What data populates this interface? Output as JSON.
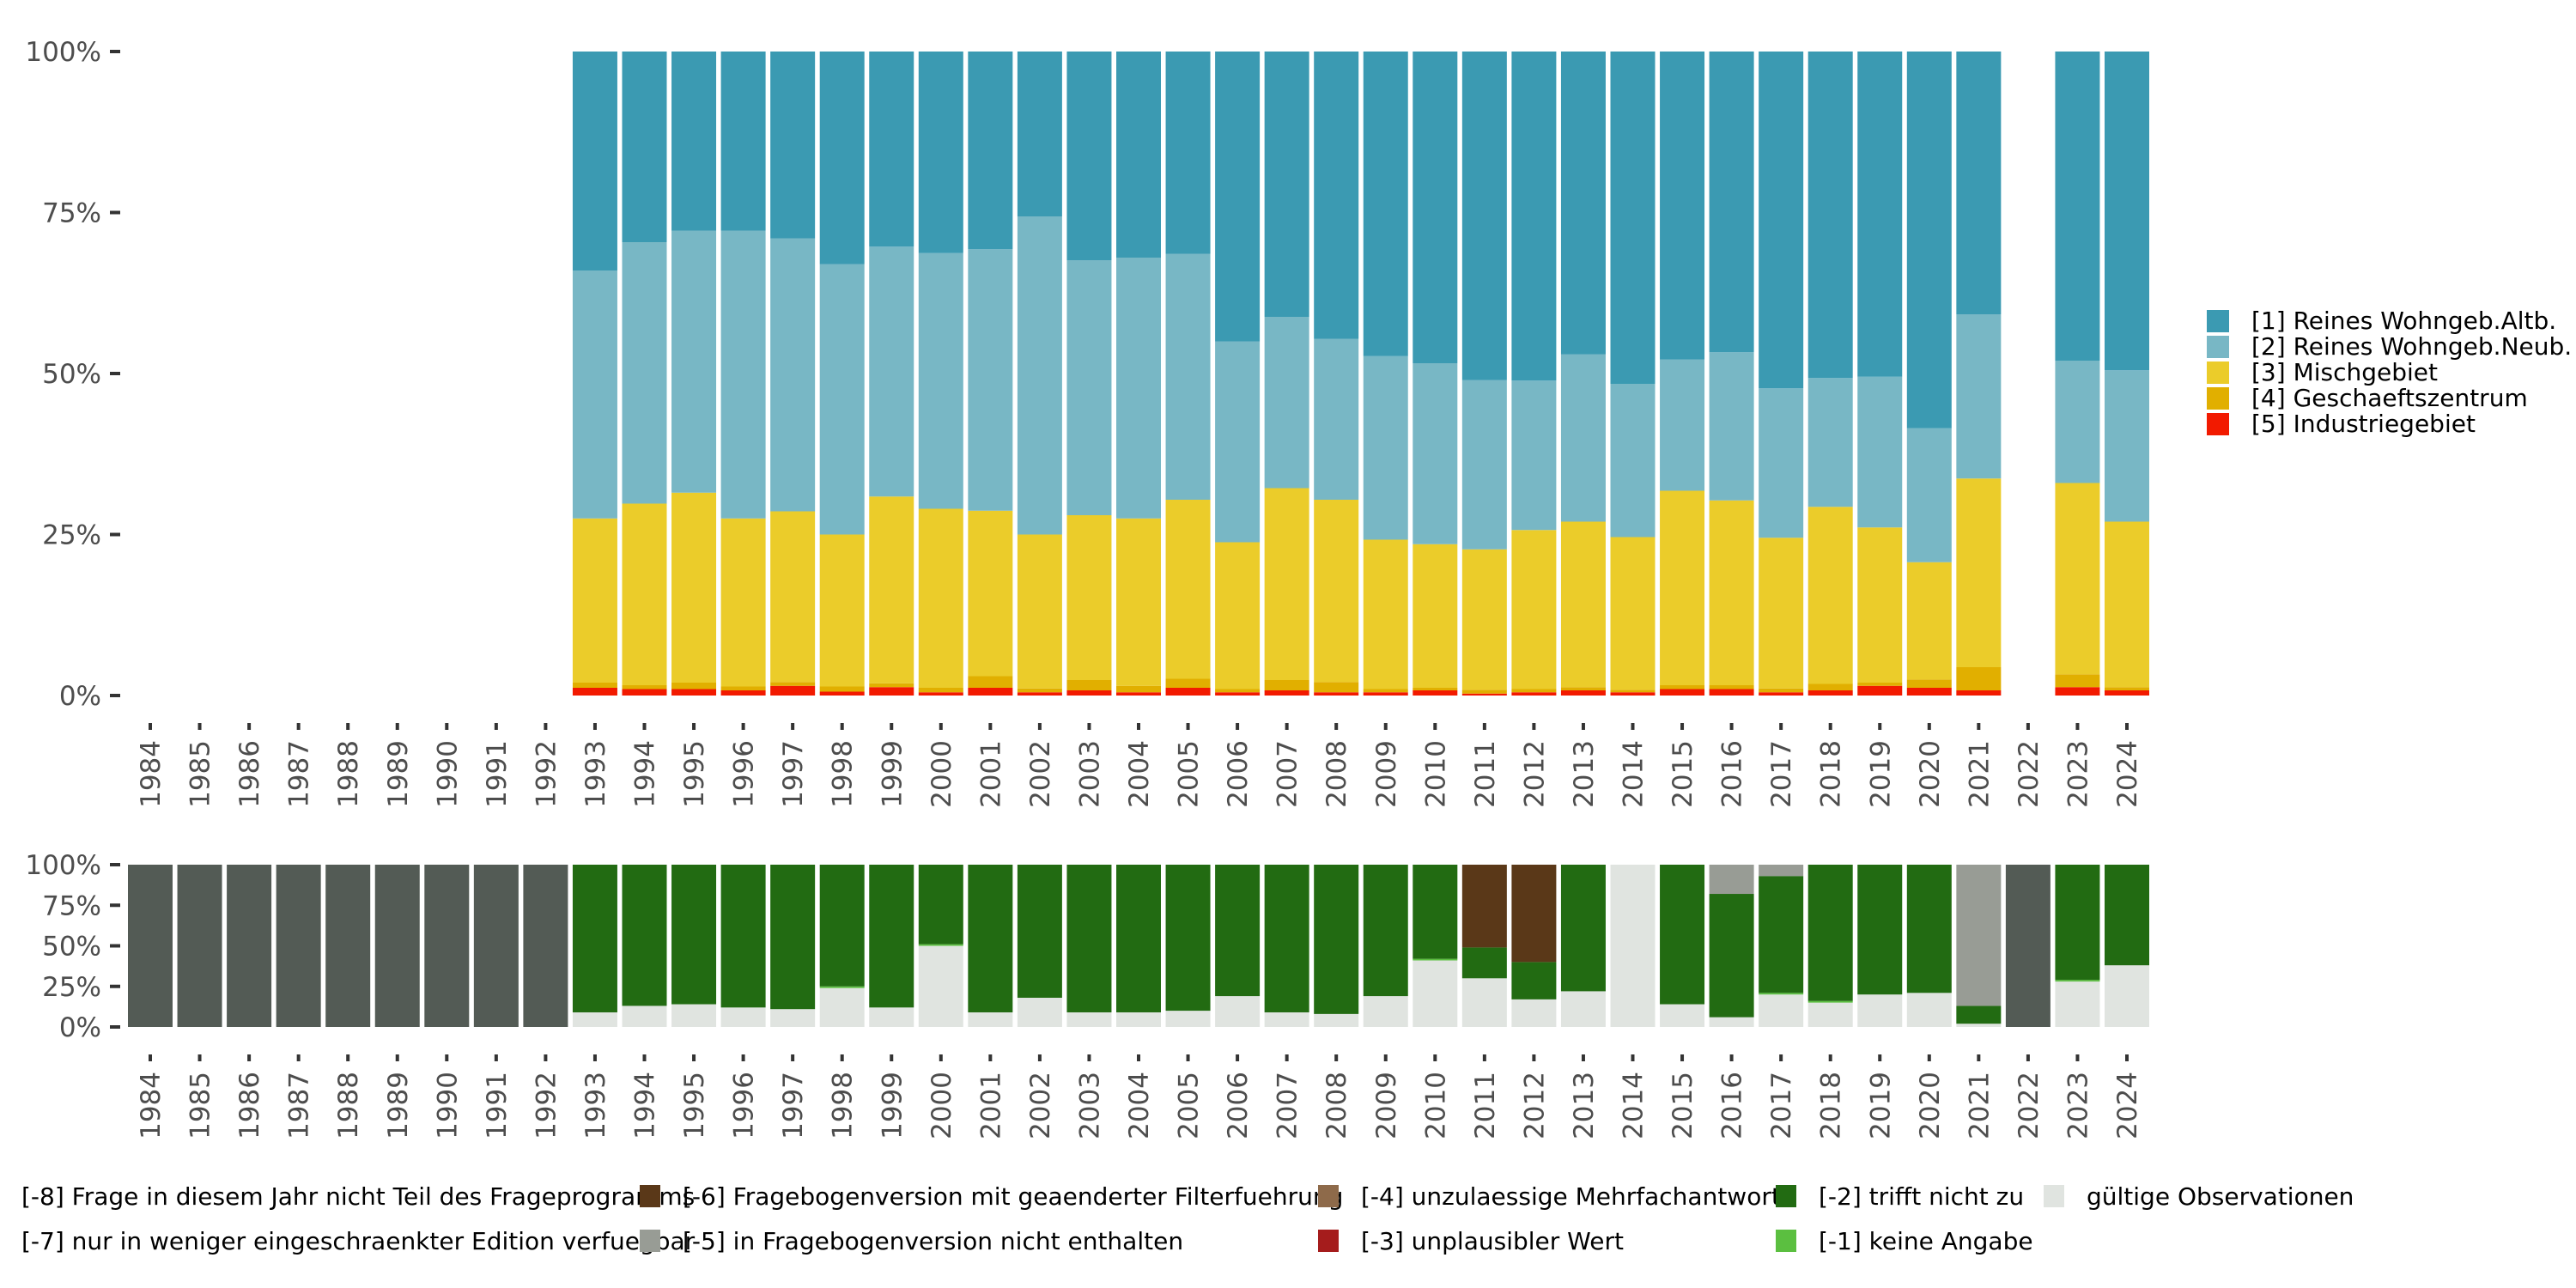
{
  "chart_data": [
    {
      "type": "bar",
      "stacked": true,
      "normalized": true,
      "title": "",
      "xlabel": "",
      "ylabel": "",
      "ylim": [
        0,
        1
      ],
      "yticks": [
        "0%",
        "25%",
        "50%",
        "75%",
        "100%"
      ],
      "categories": [
        "1984",
        "1985",
        "1986",
        "1987",
        "1988",
        "1989",
        "1990",
        "1991",
        "1992",
        "1993",
        "1994",
        "1995",
        "1996",
        "1997",
        "1998",
        "1999",
        "2000",
        "2001",
        "2002",
        "2003",
        "2004",
        "2005",
        "2006",
        "2007",
        "2008",
        "2009",
        "2010",
        "2011",
        "2012",
        "2013",
        "2014",
        "2015",
        "2016",
        "2017",
        "2018",
        "2019",
        "2020",
        "2021",
        "2022",
        "2023",
        "2024"
      ],
      "legend_position": "right",
      "series": [
        {
          "name": "[5] Industriegebiet",
          "color": "#F21A00",
          "values": [
            null,
            null,
            null,
            null,
            null,
            null,
            null,
            null,
            null,
            1.2,
            1.0,
            1.0,
            0.8,
            1.5,
            0.6,
            1.3,
            0.5,
            1.2,
            0.5,
            0.8,
            0.5,
            1.2,
            0.5,
            0.8,
            0.5,
            0.5,
            0.8,
            0.3,
            0.5,
            0.8,
            0.5,
            1.0,
            1.0,
            0.5,
            0.8,
            1.5,
            1.2,
            0.8,
            null,
            1.3,
            0.8
          ]
        },
        {
          "name": "[4] Geschaeftszentrum",
          "color": "#E1AF00",
          "values": [
            null,
            null,
            null,
            null,
            null,
            null,
            null,
            null,
            null,
            0.8,
            0.6,
            1.0,
            0.6,
            0.6,
            0.8,
            0.6,
            0.7,
            1.8,
            0.6,
            1.6,
            1.0,
            1.4,
            0.5,
            1.6,
            1.6,
            0.5,
            0.4,
            0.6,
            0.5,
            0.5,
            0.4,
            0.6,
            0.6,
            0.6,
            1.0,
            0.5,
            1.3,
            3.6,
            null,
            2.0,
            0.5
          ]
        },
        {
          "name": "[3] Mischgebiet",
          "color": "#EBCC2A",
          "values": [
            null,
            null,
            null,
            null,
            null,
            null,
            null,
            null,
            null,
            25.5,
            28.2,
            29.5,
            26.1,
            26.5,
            23.6,
            29.0,
            27.8,
            25.7,
            23.9,
            25.6,
            26.0,
            27.8,
            22.8,
            29.8,
            28.3,
            23.2,
            22.3,
            21.8,
            24.7,
            25.7,
            23.7,
            30.2,
            28.7,
            23.4,
            27.5,
            24.1,
            18.2,
            29.3,
            null,
            29.7,
            25.7
          ]
        },
        {
          "name": "[2] Reines Wohngeb.Neub.",
          "color": "#78B7C5",
          "values": [
            null,
            null,
            null,
            null,
            null,
            null,
            null,
            null,
            null,
            38.5,
            40.6,
            40.7,
            44.7,
            42.4,
            42.0,
            38.8,
            39.7,
            40.6,
            49.4,
            39.6,
            40.5,
            38.2,
            31.2,
            26.6,
            25.0,
            28.5,
            28.1,
            26.3,
            23.2,
            26.0,
            23.8,
            20.4,
            23.0,
            23.2,
            20.0,
            23.4,
            20.8,
            25.5,
            null,
            19.0,
            23.5
          ]
        },
        {
          "name": "[1] Reines Wohngeb.Altb.",
          "color": "#3B9AB2",
          "values": [
            null,
            null,
            null,
            null,
            null,
            null,
            null,
            null,
            null,
            34.0,
            29.6,
            27.8,
            27.8,
            29.0,
            33.0,
            30.3,
            31.3,
            30.7,
            25.6,
            32.4,
            32.0,
            31.4,
            45.0,
            41.2,
            44.6,
            47.3,
            48.4,
            51.0,
            51.1,
            47.0,
            51.6,
            47.8,
            46.7,
            52.3,
            50.7,
            50.5,
            58.5,
            40.8,
            null,
            48.0,
            49.5
          ]
        }
      ]
    },
    {
      "type": "bar",
      "stacked": true,
      "normalized": true,
      "title": "",
      "xlabel": "",
      "ylabel": "",
      "ylim": [
        0,
        1
      ],
      "yticks": [
        "0%",
        "25%",
        "50%",
        "75%",
        "100%"
      ],
      "categories": [
        "1984",
        "1985",
        "1986",
        "1987",
        "1988",
        "1989",
        "1990",
        "1991",
        "1992",
        "1993",
        "1994",
        "1995",
        "1996",
        "1997",
        "1998",
        "1999",
        "2000",
        "2001",
        "2002",
        "2003",
        "2004",
        "2005",
        "2006",
        "2007",
        "2008",
        "2009",
        "2010",
        "2011",
        "2012",
        "2013",
        "2014",
        "2015",
        "2016",
        "2017",
        "2018",
        "2019",
        "2020",
        "2021",
        "2022",
        "2023",
        "2024"
      ],
      "legend_position": "bottom",
      "series": [
        {
          "name": "gültige Observationen",
          "color": "#E0E4E0",
          "values": [
            0,
            0,
            0,
            0,
            0,
            0,
            0,
            0,
            0,
            9,
            13,
            14,
            12,
            11,
            24,
            12,
            50,
            9,
            18,
            9,
            9,
            10,
            19,
            9,
            8,
            19,
            41,
            30,
            17,
            22,
            100,
            14,
            6,
            20,
            15,
            20,
            21,
            2,
            0,
            28,
            38
          ]
        },
        {
          "name": "[-1] keine Angabe",
          "color": "#5BBF40",
          "values": [
            0,
            0,
            0,
            0,
            0,
            0,
            0,
            0,
            0,
            0,
            0,
            0,
            0,
            0,
            1,
            0,
            1,
            0,
            0,
            0,
            0,
            0,
            0,
            0,
            0,
            0,
            1,
            0,
            0,
            0,
            0,
            0,
            0,
            1,
            1,
            0,
            0,
            0,
            0,
            1,
            0
          ]
        },
        {
          "name": "[-2] trifft nicht zu",
          "color": "#226B12",
          "values": [
            0,
            0,
            0,
            0,
            0,
            0,
            0,
            0,
            0,
            91,
            87,
            86,
            88,
            89,
            75,
            88,
            49,
            91,
            82,
            91,
            91,
            90,
            81,
            91,
            92,
            81,
            58,
            19,
            23,
            78,
            0,
            86,
            76,
            72,
            84,
            80,
            79,
            11,
            0,
            71,
            62
          ]
        },
        {
          "name": "[-3] unplausibler Wert",
          "color": "#A51C1C",
          "values": [
            0,
            0,
            0,
            0,
            0,
            0,
            0,
            0,
            0,
            0,
            0,
            0,
            0,
            0,
            0,
            0,
            0,
            0,
            0,
            0,
            0,
            0,
            0,
            0,
            0,
            0,
            0,
            0,
            0,
            0,
            0,
            0,
            0,
            0,
            0,
            0,
            0,
            0,
            0,
            0,
            0
          ]
        },
        {
          "name": "[-4] unzulaessige Mehrfachantwort",
          "color": "#8E6A4A",
          "values": [
            0,
            0,
            0,
            0,
            0,
            0,
            0,
            0,
            0,
            0,
            0,
            0,
            0,
            0,
            0,
            0,
            0,
            0,
            0,
            0,
            0,
            0,
            0,
            0,
            0,
            0,
            0,
            0,
            0,
            0,
            0,
            0,
            0,
            0,
            0,
            0,
            0,
            0,
            0,
            0,
            0
          ]
        },
        {
          "name": "[-5] in Fragebogenversion nicht enthalten",
          "color": "#989C95",
          "values": [
            0,
            0,
            0,
            0,
            0,
            0,
            0,
            0,
            0,
            0,
            0,
            0,
            0,
            0,
            0,
            0,
            0,
            0,
            0,
            0,
            0,
            0,
            0,
            0,
            0,
            0,
            0,
            0,
            0,
            0,
            0,
            0,
            18,
            7,
            0,
            0,
            0,
            87,
            0,
            0,
            0
          ]
        },
        {
          "name": "[-6] Fragebogenversion mit geaenderter Filterfuehrung",
          "color": "#5A3818",
          "values": [
            0,
            0,
            0,
            0,
            0,
            0,
            0,
            0,
            0,
            0,
            0,
            0,
            0,
            0,
            0,
            0,
            0,
            0,
            0,
            0,
            0,
            0,
            0,
            0,
            0,
            0,
            0,
            51,
            60,
            0,
            0,
            0,
            0,
            0,
            0,
            0,
            0,
            0,
            0,
            0,
            0
          ]
        },
        {
          "name": "[-7] nur in weniger eingeschraenkter Edition verfuegbar",
          "color": "#989C95",
          "values": [
            0,
            0,
            0,
            0,
            0,
            0,
            0,
            0,
            0,
            0,
            0,
            0,
            0,
            0,
            0,
            0,
            0,
            0,
            0,
            0,
            0,
            0,
            0,
            0,
            0,
            0,
            0,
            0,
            0,
            0,
            0,
            0,
            0,
            0,
            0,
            0,
            0,
            0,
            0,
            0,
            0
          ]
        },
        {
          "name": "[-8] Frage in diesem Jahr nicht Teil des Frageprogramms",
          "color": "#535B55",
          "values": [
            100,
            100,
            100,
            100,
            100,
            100,
            100,
            100,
            100,
            0,
            0,
            0,
            0,
            0,
            0,
            0,
            0,
            0,
            0,
            0,
            0,
            0,
            0,
            0,
            0,
            0,
            0,
            0,
            0,
            0,
            0,
            0,
            0,
            0,
            0,
            0,
            0,
            0,
            100,
            0,
            0
          ]
        }
      ]
    }
  ],
  "top_legend": [
    {
      "label": "[1] Reines Wohngeb.Altb.",
      "color": "#3B9AB2"
    },
    {
      "label": "[2] Reines Wohngeb.Neub.",
      "color": "#78B7C5"
    },
    {
      "label": "[3] Mischgebiet",
      "color": "#EBCC2A"
    },
    {
      "label": "[4] Geschaeftszentrum",
      "color": "#E1AF00"
    },
    {
      "label": "[5] Industriegebiet",
      "color": "#F21A00"
    }
  ],
  "bottom_legend": [
    {
      "label": "[-8] Frage in diesem Jahr nicht Teil des Frageprogramms",
      "color": "#535B55"
    },
    {
      "label": "[-7] nur in weniger eingeschraenkter Edition verfuegbar",
      "color": "#989C95"
    },
    {
      "label": "[-6] Fragebogenversion mit geaenderter Filterfuehrung",
      "color": "#5A3818"
    },
    {
      "label": "[-5] in Fragebogenversion nicht enthalten",
      "color": "#989C95"
    },
    {
      "label": "[-4] unzulaessige Mehrfachantwort",
      "color": "#8E6A4A"
    },
    {
      "label": "[-3] unplausibler Wert",
      "color": "#A51C1C"
    },
    {
      "label": "[-2] trifft nicht zu",
      "color": "#226B12"
    },
    {
      "label": "[-1] keine Angabe",
      "color": "#5BBF40"
    },
    {
      "label": "gültige Observationen",
      "color": "#E0E4E0"
    }
  ]
}
